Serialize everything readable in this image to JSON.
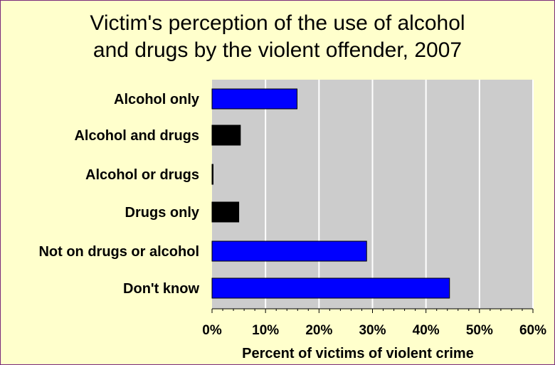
{
  "chart_data": {
    "type": "bar",
    "orientation": "horizontal",
    "title_lines": [
      "Victim's perception of the use of alcohol",
      "and drugs by the violent offender, 2007"
    ],
    "categories": [
      "Alcohol only",
      "Alcohol and drugs",
      "Alcohol or drugs",
      "Drugs only",
      "Not on drugs or alcohol",
      "Don't know"
    ],
    "values": [
      15.9,
      5.3,
      0.2,
      5.0,
      28.9,
      44.4
    ],
    "bar_colors": [
      "#0000ff",
      "#000000",
      "#000000",
      "#000000",
      "#0000ff",
      "#0000ff"
    ],
    "xlim": [
      0,
      60
    ],
    "x_ticks": [
      "0%",
      "10%",
      "20%",
      "30%",
      "40%",
      "50%",
      "60%"
    ],
    "xlabel": "Percent of victims of violent crime",
    "ylabel": "",
    "grid": true,
    "plot_background": "#cccccc",
    "page_background": "#ffffcc",
    "border_color": "#7a2a7a"
  }
}
